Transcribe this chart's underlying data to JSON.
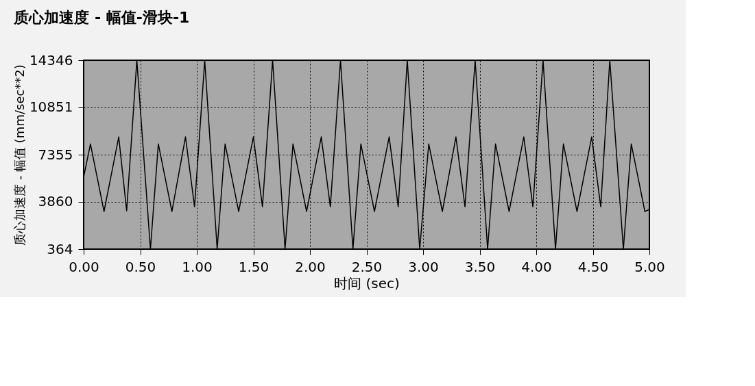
{
  "chart_data": {
    "type": "line",
    "title": "质心加速度 - 幅值-滑块-1",
    "xlabel": "时间 (sec)",
    "ylabel": "质心加速度 - 幅值 (mm/sec**2)",
    "x": [
      0.0,
      0.06,
      0.18,
      0.31,
      0.38,
      0.47,
      0.59,
      0.66,
      0.78,
      0.9,
      0.98,
      1.07,
      1.18,
      1.25,
      1.37,
      1.5,
      1.58,
      1.67,
      1.78,
      1.85,
      1.97,
      2.1,
      2.18,
      2.27,
      2.38,
      2.45,
      2.57,
      2.7,
      2.78,
      2.86,
      2.97,
      3.05,
      3.17,
      3.29,
      3.37,
      3.46,
      3.57,
      3.64,
      3.76,
      3.89,
      3.97,
      4.06,
      4.17,
      4.24,
      4.36,
      4.49,
      4.57,
      4.65,
      4.77,
      4.84,
      4.96,
      5.0
    ],
    "series": [
      {
        "color": "#000000",
        "values": [
          5700,
          8150,
          3150,
          8670,
          3200,
          14346,
          364,
          8150,
          3150,
          8670,
          3500,
          14346,
          364,
          8150,
          3150,
          8670,
          3500,
          14346,
          364,
          8150,
          3150,
          8670,
          3500,
          14346,
          364,
          8150,
          3150,
          8670,
          3500,
          14346,
          364,
          8150,
          3150,
          8670,
          3500,
          14346,
          364,
          8150,
          3150,
          8670,
          3500,
          14346,
          364,
          8150,
          3150,
          8670,
          3500,
          14346,
          364,
          8150,
          3150,
          3300
        ]
      }
    ],
    "xlim": [
      0,
      5
    ],
    "ylim": [
      364,
      14346
    ],
    "xticks": [
      {
        "value": 0,
        "label": "0.00"
      },
      {
        "value": 0.5,
        "label": "0.50"
      },
      {
        "value": 1,
        "label": "1.00"
      },
      {
        "value": 1.5,
        "label": "1.50"
      },
      {
        "value": 2,
        "label": "2.00"
      },
      {
        "value": 2.5,
        "label": "2.50"
      },
      {
        "value": 3,
        "label": "3.00"
      },
      {
        "value": 3.5,
        "label": "3.50"
      },
      {
        "value": 4,
        "label": "4.00"
      },
      {
        "value": 4.5,
        "label": "4.50"
      },
      {
        "value": 5,
        "label": "5.00"
      }
    ],
    "yticks": [
      364,
      3860,
      7355,
      10851,
      14346
    ],
    "grid": true,
    "marker": "none",
    "line_style": "solid"
  }
}
